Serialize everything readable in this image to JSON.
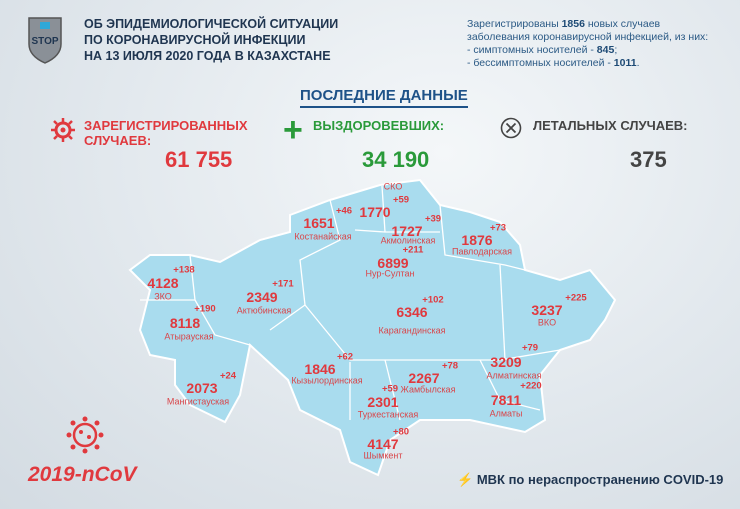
{
  "logo": {
    "text": "STOP",
    "icon": "shield-stop-logo"
  },
  "title": {
    "line1": "ОБ ЭПИДЕМИОЛОГИЧЕСКОЙ СИТУАЦИИ",
    "line2": "ПО КОРОНАВИРУСНОЙ ИНФЕКЦИИ",
    "line3": "НА 13 ИЮЛЯ 2020 ГОДА В КАЗАХСТАНЕ"
  },
  "info": {
    "l1a": "Зарегистрированы ",
    "l1b": "1856",
    "l1c": " новых случаев",
    "l2": "заболевания коронавирусной инфекцией, из них:",
    "l3a": "- симптомных носителей - ",
    "l3b": "845",
    "l3c": ";",
    "l4a": "- бессимптомных носителей - ",
    "l4b": "1011",
    "l4c": "."
  },
  "latest_label": "ПОСЛЕДНИЕ ДАННЫЕ",
  "stats": {
    "registered": {
      "label1": "ЗАРЕГИСТРИРОВАННЫХ",
      "label2": "СЛУЧАЕВ:",
      "value": "61 755",
      "icon": "virus-icon",
      "color": "#e0393e"
    },
    "recovered": {
      "label": "ВЫЗДОРОВЕВШИХ:",
      "value": "34 190",
      "icon": "plus-icon",
      "color": "#2a9a3a"
    },
    "deaths": {
      "label": "ЛЕТАЛЬНЫХ СЛУЧАЕВ:",
      "value": "375",
      "icon": "cross-circle-icon",
      "color": "#444444"
    }
  },
  "regions": [
    {
      "name": "СКО",
      "total": "1770",
      "new": "+59"
    },
    {
      "name": "Костанайская",
      "total": "1651",
      "new": "+46"
    },
    {
      "name": "Акмолинская",
      "total": "1727",
      "new": "+39"
    },
    {
      "name": "Павлодарская",
      "total": "1876",
      "new": "+73"
    },
    {
      "name": "Нур-Султан",
      "total": "6899",
      "new": "+211"
    },
    {
      "name": "ЗКО",
      "total": "4128",
      "new": "+138"
    },
    {
      "name": "Актюбинская",
      "total": "2349",
      "new": "+171"
    },
    {
      "name": "Атырауская",
      "total": "8118",
      "new": "+190"
    },
    {
      "name": "Карагандинская",
      "total": "6346",
      "new": "+102"
    },
    {
      "name": "ВКО",
      "total": "3237",
      "new": "+225"
    },
    {
      "name": "Мангистауская",
      "total": "2073",
      "new": "+24"
    },
    {
      "name": "Кызылординская",
      "total": "1846",
      "new": "+62"
    },
    {
      "name": "Жамбылская",
      "total": "2267",
      "new": "+78"
    },
    {
      "name": "Алматинская",
      "total": "3209",
      "new": "+79"
    },
    {
      "name": "Туркестанская",
      "total": "2301",
      "new": "+59"
    },
    {
      "name": "Алматы",
      "total": "7811",
      "new": "+220"
    },
    {
      "name": "Шымкент",
      "total": "4147",
      "new": "+80"
    }
  ],
  "map_color": "#a9dcee",
  "ncov": "2019-nCoV",
  "footer": {
    "icon": "lightning-icon",
    "text": "МВК по нераспространению COVID-19"
  }
}
